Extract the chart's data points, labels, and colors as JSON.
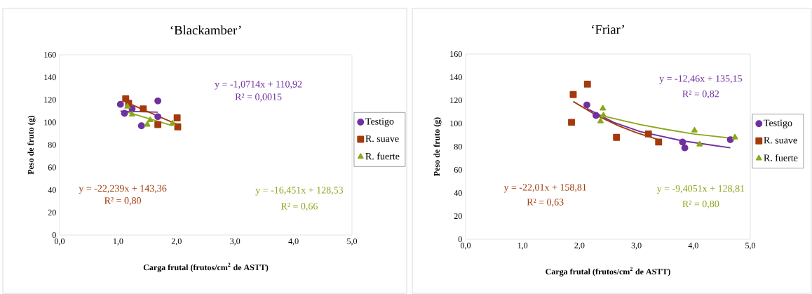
{
  "chart_data": [
    {
      "type": "scatter",
      "title": "‘Blackamber’",
      "xlabel": "Carga frutal (frutos/cm$^{2}$ de ASTT)",
      "ylabel": "Peso de fruto (g)",
      "xlim": [
        0,
        5
      ],
      "ylim": [
        0,
        160
      ],
      "xticks": [
        {
          "value": 0,
          "label": "0,0"
        },
        {
          "value": 1,
          "label": "1,0"
        },
        {
          "value": 2,
          "label": "2,0"
        },
        {
          "value": 3,
          "label": "3,0"
        },
        {
          "value": 4,
          "label": "4,0"
        },
        {
          "value": 5,
          "label": "5,0"
        }
      ],
      "yticks": [
        0,
        20,
        40,
        60,
        80,
        100,
        120,
        140,
        160
      ],
      "legend": "right",
      "grid": false,
      "series": [
        {
          "name": "Testigo",
          "color": "#7030a0",
          "marker": "circle",
          "x": [
            1.04,
            1.11,
            1.24,
            1.4,
            1.68,
            1.68
          ],
          "values": [
            116,
            108,
            112,
            97,
            119,
            105
          ]
        },
        {
          "name": "R. suave",
          "color": "#a33a0c",
          "marker": "square",
          "x": [
            1.13,
            1.18,
            1.43,
            1.68,
            2.01,
            2.02
          ],
          "values": [
            121,
            117,
            112,
            98,
            104,
            96
          ]
        },
        {
          "name": "R. fuerte",
          "color": "#8aa81c",
          "marker": "triangle",
          "x": [
            1.16,
            1.24,
            1.5,
            1.55,
            1.93
          ],
          "values": [
            114,
            107,
            98,
            102,
            99
          ]
        },
        {
          "type": "line",
          "color": "#7030a0",
          "x": [
            1.04,
            1.68
          ],
          "values": [
            110,
            109
          ]
        },
        {
          "type": "line",
          "color": "#a33a0c",
          "x": [
            1.13,
            2.02
          ],
          "values": [
            118,
            98
          ]
        },
        {
          "type": "line",
          "color": "#8aa81c",
          "x": [
            1.16,
            1.93
          ],
          "values": [
            109,
            97
          ]
        }
      ],
      "annotations": [
        "y = -1,0714x + 110,92",
        "R² = 0,0015",
        "y = -22,239x + 143,36",
        "R² = 0,80",
        "y = -16,451x + 128,53",
        "R² = 0,66"
      ]
    },
    {
      "type": "scatter",
      "title": "‘Friar’",
      "xlabel": "Carga frutal (frutos/cm$^{2}$ de ASTT)",
      "ylabel": "Peso de fruto  (g)",
      "xlim": [
        0,
        5
      ],
      "ylim": [
        0,
        160
      ],
      "xticks": [
        {
          "value": 0,
          "label": "0,0"
        },
        {
          "value": 1,
          "label": "1,0"
        },
        {
          "value": 2,
          "label": "2,0"
        },
        {
          "value": 3,
          "label": "3,0"
        },
        {
          "value": 4,
          "label": "4,0"
        },
        {
          "value": 5,
          "label": "5,0"
        }
      ],
      "yticks": [
        0,
        20,
        40,
        60,
        80,
        100,
        120,
        140,
        160
      ],
      "legend": "right",
      "grid": false,
      "series": [
        {
          "name": "Testigo",
          "color": "#7030a0",
          "marker": "circle",
          "x": [
            2.13,
            2.29,
            3.81,
            3.85,
            4.65
          ],
          "values": [
            116,
            107,
            84,
            79,
            86
          ]
        },
        {
          "name": "R. suave",
          "color": "#a33a0c",
          "marker": "square",
          "x": [
            1.89,
            2.14,
            1.86,
            2.65,
            3.21,
            3.39
          ],
          "values": [
            125,
            134,
            101,
            88,
            91,
            84
          ]
        },
        {
          "name": "R. fuerte",
          "color": "#8aa81c",
          "marker": "triangle",
          "x": [
            2.41,
            2.37,
            2.42,
            4.02,
            4.11,
            4.73
          ],
          "values": [
            113,
            102,
            107,
            94,
            82,
            88
          ]
        },
        {
          "type": "line",
          "color": "#7030a0",
          "x": [
            2.13,
            2.6,
            3.07,
            3.81,
            4.65
          ],
          "values": [
            113,
            101,
            93,
            85,
            79
          ]
        },
        {
          "type": "line",
          "color": "#a33a0c",
          "x": [
            1.89,
            2.3,
            2.69,
            3.0,
            3.39
          ],
          "values": [
            119,
            107,
            98,
            92,
            86
          ]
        },
        {
          "type": "line",
          "color": "#8aa81c",
          "x": [
            2.37,
            2.8,
            3.07,
            3.51,
            4.0,
            4.73
          ],
          "values": [
            107,
            102,
            99,
            95,
            91,
            87
          ]
        }
      ],
      "annotations": [
        "y = -12,46x + 135,15",
        "R² = 0,82",
        "y = -22,01x + 158,81",
        "R² = 0,63",
        "y = -9,4051x + 128,81",
        "R² = 0,80"
      ]
    }
  ]
}
